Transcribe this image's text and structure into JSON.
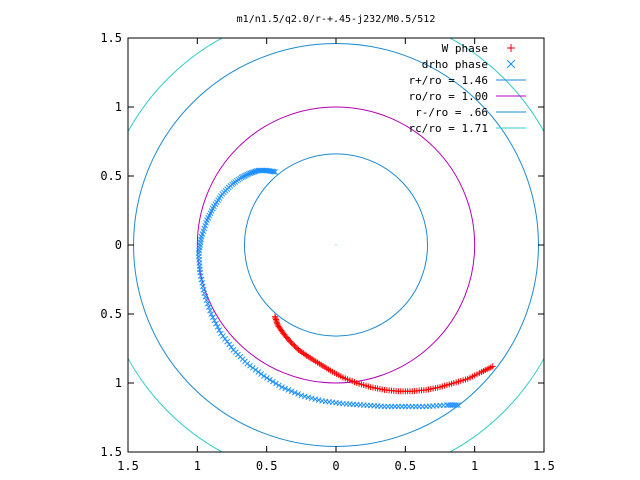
{
  "chart_data": {
    "type": "scatter",
    "title": "m1/n1.5/q2.0/r-+.45-j232/M0.5/512",
    "xlim": [
      -1.5,
      1.5
    ],
    "ylim": [
      -1.5,
      1.5
    ],
    "x_tick_labels": [
      "1.5",
      "1",
      "0.5",
      "0",
      "0.5",
      "1",
      "1.5"
    ],
    "y_tick_labels": [
      "1.5",
      "1",
      "0.5",
      "0",
      "0.5",
      "1",
      "1.5"
    ],
    "ticks": [
      -1.5,
      -1,
      -0.5,
      0,
      0.5,
      1,
      1.5
    ],
    "grid": false,
    "legend_position": "top-right",
    "series": [
      {
        "name": "W phase",
        "kind": "scatter",
        "marker": "plus",
        "color": "#ff0000",
        "points": [
          [
            -0.44,
            -0.52
          ],
          [
            -0.42,
            -0.58
          ],
          [
            -0.38,
            -0.64
          ],
          [
            -0.33,
            -0.7
          ],
          [
            -0.27,
            -0.76
          ],
          [
            -0.2,
            -0.81
          ],
          [
            -0.12,
            -0.86
          ],
          [
            -0.04,
            -0.91
          ],
          [
            0.05,
            -0.96
          ],
          [
            0.15,
            -1.0
          ],
          [
            0.25,
            -1.03
          ],
          [
            0.35,
            -1.05
          ],
          [
            0.45,
            -1.06
          ],
          [
            0.55,
            -1.06
          ],
          [
            0.65,
            -1.05
          ],
          [
            0.75,
            -1.03
          ],
          [
            0.85,
            -1.0
          ],
          [
            0.95,
            -0.97
          ],
          [
            1.05,
            -0.92
          ],
          [
            1.13,
            -0.88
          ]
        ]
      },
      {
        "name": "drho phase",
        "kind": "scatter",
        "marker": "cross",
        "color": "#1e90ff",
        "points": [
          [
            -0.44,
            0.53
          ],
          [
            -0.5,
            0.54
          ],
          [
            -0.56,
            0.54
          ],
          [
            -0.62,
            0.52
          ],
          [
            -0.68,
            0.49
          ],
          [
            -0.75,
            0.44
          ],
          [
            -0.82,
            0.37
          ],
          [
            -0.88,
            0.28
          ],
          [
            -0.93,
            0.18
          ],
          [
            -0.97,
            0.06
          ],
          [
            -0.99,
            -0.06
          ],
          [
            -0.98,
            -0.2
          ],
          [
            -0.95,
            -0.35
          ],
          [
            -0.9,
            -0.5
          ],
          [
            -0.83,
            -0.64
          ],
          [
            -0.74,
            -0.76
          ],
          [
            -0.64,
            -0.86
          ],
          [
            -0.52,
            -0.95
          ],
          [
            -0.39,
            -1.03
          ],
          [
            -0.25,
            -1.09
          ],
          [
            -0.1,
            -1.13
          ],
          [
            0.05,
            -1.15
          ],
          [
            0.2,
            -1.16
          ],
          [
            0.35,
            -1.17
          ],
          [
            0.5,
            -1.17
          ],
          [
            0.65,
            -1.17
          ],
          [
            0.8,
            -1.16
          ],
          [
            0.88,
            -1.16
          ]
        ]
      },
      {
        "name": "r+/ro = 1.46",
        "kind": "circle",
        "radius": 1.46,
        "color": "#1c8bd0"
      },
      {
        "name": "ro/ro = 1.00",
        "kind": "circle",
        "radius": 1.0,
        "color": "#b400b4"
      },
      {
        "name": "r-/ro = .66",
        "kind": "circle",
        "radius": 0.66,
        "color": "#1c8bd0"
      },
      {
        "name": "rc/ro = 1.71",
        "kind": "circle",
        "radius": 1.71,
        "color": "#33cccc"
      }
    ]
  }
}
